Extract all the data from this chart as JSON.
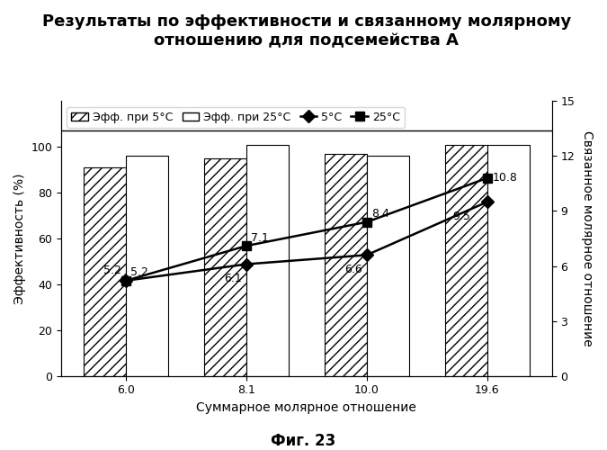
{
  "title": "Результаты по эффективности и связанному молярному\nотношению для подсемейства А",
  "xlabel": "Суммарное молярное отношение",
  "ylabel_left": "Эффективность (%)",
  "ylabel_right": "Связанное молярное отношение",
  "figcaption": "Фиг. 23",
  "x_labels": [
    "6.0",
    "8.1",
    "10.0",
    "19.6"
  ],
  "bar_5c": [
    91,
    95,
    97,
    101
  ],
  "bar_25c": [
    96,
    101,
    96,
    101
  ],
  "line_5c": [
    5.2,
    6.1,
    6.6,
    9.5
  ],
  "line_25c": [
    5.2,
    7.1,
    8.4,
    10.8
  ],
  "line_5c_labels": [
    "5.2",
    "6.1",
    "6.6",
    "9.5"
  ],
  "line_25c_labels": [
    "5.2",
    "7.1",
    "8.4",
    "10.8"
  ],
  "ylim_left": [
    0,
    120
  ],
  "ylim_right": [
    0,
    15
  ],
  "yticks_left": [
    0,
    20,
    40,
    60,
    80,
    100
  ],
  "yticks_right": [
    0,
    3,
    6,
    9,
    12,
    15
  ],
  "bar_width": 0.35,
  "legend_labels": [
    "Эфф. при 5°C",
    "Эфф. при 25°C",
    "5°C",
    "25°C"
  ],
  "hatch_color": "#000000",
  "bar_25c_color": "#ffffff",
  "bar_5c_color": "#ffffff",
  "line_color_5c": "#000000",
  "line_color_25c": "#000000",
  "font_size_title": 13,
  "font_size_labels": 10,
  "font_size_ticks": 9,
  "font_size_legend": 9,
  "font_size_caption": 12
}
